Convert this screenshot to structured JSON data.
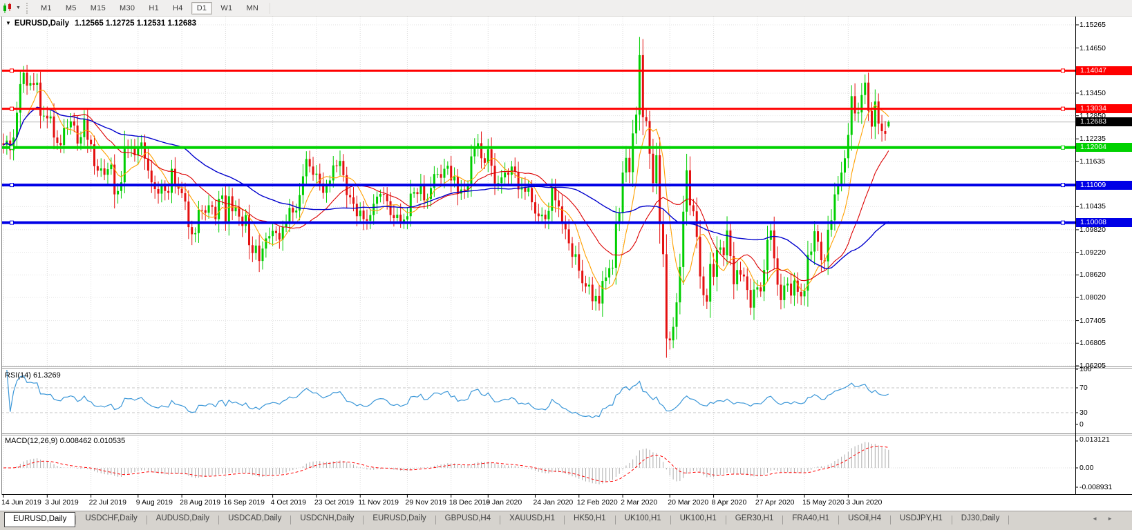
{
  "toolbar": {
    "chart_type_icon": "candlestick-chart-icon",
    "timeframes": [
      {
        "label": "M1",
        "active": false
      },
      {
        "label": "M5",
        "active": false
      },
      {
        "label": "M15",
        "active": false
      },
      {
        "label": "M30",
        "active": false
      },
      {
        "label": "H1",
        "active": false
      },
      {
        "label": "H4",
        "active": false
      },
      {
        "label": "D1",
        "active": true
      },
      {
        "label": "W1",
        "active": false
      },
      {
        "label": "MN",
        "active": false
      }
    ]
  },
  "chart_title": {
    "symbol_period": "EURUSD,Daily",
    "ohlc_line": "1.12565 1.12725 1.12531 1.12683"
  },
  "chart_data": {
    "type": "candlestick",
    "symbol": "EURUSD",
    "period": "Daily",
    "ylim": [
      1.06187,
      1.15485
    ],
    "candle_colors": {
      "up": "#00CE00",
      "down": "#E41010"
    },
    "first_open": 1.1212,
    "closes": [
      1.1207,
      1.1219,
      1.1193,
      1.1227,
      1.1293,
      1.1369,
      1.1399,
      1.1365,
      1.1372,
      1.1367,
      1.1373,
      1.1285,
      1.1285,
      1.1278,
      1.1283,
      1.1227,
      1.1213,
      1.1207,
      1.1253,
      1.1254,
      1.127,
      1.1259,
      1.1211,
      1.1228,
      1.1276,
      1.1221,
      1.1209,
      1.1151,
      1.1139,
      1.1145,
      1.1128,
      1.1143,
      1.1155,
      1.1076,
      1.1085,
      1.1108,
      1.1203,
      1.1197,
      1.12,
      1.118,
      1.12,
      1.1214,
      1.1171,
      1.1139,
      1.1108,
      1.109,
      1.1078,
      1.1099,
      1.1085,
      1.108,
      1.1144,
      1.1101,
      1.1091,
      1.1079,
      1.1057,
      1.0989,
      1.097,
      1.0973,
      1.1035,
      1.1034,
      1.1027,
      1.1047,
      1.1043,
      1.101,
      1.1064,
      1.1073,
      1.1003,
      1.1071,
      1.1031,
      1.1042,
      1.1017,
      1.0992,
      1.1021,
      1.0941,
      1.092,
      1.094,
      1.0899,
      1.0932,
      1.0959,
      1.0965,
      1.0979,
      1.0973,
      1.0956,
      1.0989,
      1.1004,
      1.104,
      1.1028,
      1.1033,
      1.1074,
      1.1124,
      1.117,
      1.115,
      1.1128,
      1.1131,
      1.1105,
      1.108,
      1.1099,
      1.1113,
      1.1153,
      1.1151,
      1.1165,
      1.1127,
      1.1074,
      1.1068,
      1.1051,
      1.1018,
      1.1033,
      1.101,
      1.1006,
      1.1021,
      1.1051,
      1.107,
      1.1077,
      1.1075,
      1.1058,
      1.1021,
      1.1013,
      1.1022,
      1.1001,
      1.1009,
      1.1018,
      1.1078,
      1.1082,
      1.1077,
      1.1104,
      1.106,
      1.1064,
      1.1093,
      1.113,
      1.113,
      1.112,
      1.1144,
      1.1152,
      1.1113,
      1.1123,
      1.1078,
      1.1089,
      1.1086,
      1.1098,
      1.1177,
      1.1199,
      1.1212,
      1.1172,
      1.116,
      1.1196,
      1.1152,
      1.1105,
      1.1106,
      1.1121,
      1.1134,
      1.1128,
      1.115,
      1.1136,
      1.1089,
      1.1095,
      1.1083,
      1.1093,
      1.1055,
      1.1025,
      1.1018,
      1.1022,
      1.101,
      1.1032,
      1.1094,
      1.106,
      1.1044,
      1.0999,
      1.0983,
      1.0946,
      1.091,
      1.0917,
      1.0873,
      1.084,
      1.0831,
      1.0836,
      1.0792,
      1.0806,
      1.0786,
      1.0846,
      1.0855,
      1.088,
      1.0881,
      1.1,
      1.1026,
      1.1134,
      1.1173,
      1.1135,
      1.1238,
      1.1288,
      1.1446,
      1.1281,
      1.1271,
      1.1184,
      1.1106,
      1.118,
      1.0997,
      1.0917,
      1.0693,
      1.0688,
      1.0724,
      1.0789,
      1.0883,
      1.103,
      1.114,
      1.1047,
      1.1031,
      1.0963,
      1.0858,
      1.0808,
      1.0791,
      1.0891,
      1.0857,
      1.0929,
      1.0935,
      1.0914,
      1.098,
      1.0912,
      1.0837,
      1.0875,
      1.0863,
      1.0858,
      1.0822,
      1.0775,
      1.0823,
      1.0829,
      1.0818,
      1.0875,
      1.0955,
      1.098,
      1.0906,
      1.0836,
      1.0795,
      1.0834,
      1.0839,
      1.0807,
      1.0847,
      1.0817,
      1.0805,
      1.082,
      1.0915,
      1.0924,
      1.0978,
      1.095,
      1.0901,
      1.0898,
      1.0982,
      1.1007,
      1.1076,
      1.1101,
      1.1134,
      1.1172,
      1.1234,
      1.1337,
      1.1291,
      1.1294,
      1.134,
      1.1373,
      1.1298,
      1.1256,
      1.1323,
      1.1264,
      1.1244,
      1.1237,
      1.12683
    ],
    "last_bar": {
      "o": 1.12565,
      "h": 1.12725,
      "l": 1.12531,
      "c": 1.12683
    },
    "moving_averages": [
      {
        "name": "fast-ma",
        "period": 8,
        "color": "#FFA000"
      },
      {
        "name": "medium-ma",
        "period": 21,
        "color": "#DC0000"
      },
      {
        "name": "slow-ma",
        "period": 50,
        "color": "#0000CD"
      }
    ],
    "price_ticks": [
      {
        "label": "1.15265",
        "value": 1.15265
      },
      {
        "label": "1.14650",
        "value": 1.1465
      },
      {
        "label": "1.13450",
        "value": 1.1345
      },
      {
        "label": "1.12850",
        "value": 1.1285
      },
      {
        "label": "1.12235",
        "value": 1.12235
      },
      {
        "label": "1.11635",
        "value": 1.11635
      },
      {
        "label": "1.10435",
        "value": 1.10435
      },
      {
        "label": "1.09820",
        "value": 1.0982
      },
      {
        "label": "1.09220",
        "value": 1.0922
      },
      {
        "label": "1.08620",
        "value": 1.0862
      },
      {
        "label": "1.08020",
        "value": 1.0802
      },
      {
        "label": "1.07405",
        "value": 1.07405
      },
      {
        "label": "1.06805",
        "value": 1.06805
      },
      {
        "label": "1.06205",
        "value": 1.06205
      }
    ],
    "grid_only_prices": [
      1.14035,
      1.1102
    ],
    "level_lines": [
      {
        "price": 1.14047,
        "label": "1.14047",
        "color": "#FF0000",
        "width": 3
      },
      {
        "price": 1.13034,
        "label": "1.13034",
        "color": "#FF0000",
        "width": 3
      },
      {
        "price": 1.12004,
        "label": "1.12004",
        "color": "#00D200",
        "width": 4
      },
      {
        "price": 1.11009,
        "label": "1.11009",
        "color": "#0000E6",
        "width": 4
      },
      {
        "price": 1.10008,
        "label": "1.10008",
        "color": "#0000E6",
        "width": 4
      }
    ],
    "current_price": {
      "value": 1.12683,
      "label": "1.12683",
      "line_color": "#b9b9b9",
      "label_bg": "#000000"
    },
    "date_ticks": [
      {
        "label": "14 Jun 2019",
        "index": 0
      },
      {
        "label": "3 Jul 2019",
        "index": 13
      },
      {
        "label": "22 Jul 2019",
        "index": 26
      },
      {
        "label": "9 Aug 2019",
        "index": 40
      },
      {
        "label": "28 Aug 2019",
        "index": 53
      },
      {
        "label": "16 Sep 2019",
        "index": 66
      },
      {
        "label": "4 Oct 2019",
        "index": 80
      },
      {
        "label": "23 Oct 2019",
        "index": 93
      },
      {
        "label": "11 Nov 2019",
        "index": 106
      },
      {
        "label": "29 Nov 2019",
        "index": 120
      },
      {
        "label": "18 Dec 2019",
        "index": 133
      },
      {
        "label": "6 Jan 2020",
        "index": 144
      },
      {
        "label": "24 Jan 2020",
        "index": 158
      },
      {
        "label": "12 Feb 2020",
        "index": 171
      },
      {
        "label": "2 Mar 2020",
        "index": 184
      },
      {
        "label": "20 Mar 2020",
        "index": 198
      },
      {
        "label": "8 Apr 2020",
        "index": 211
      },
      {
        "label": "27 Apr 2020",
        "index": 224
      },
      {
        "label": "15 May 2020",
        "index": 238
      },
      {
        "label": "3 Jun 2020",
        "index": 251
      }
    ],
    "rsi": {
      "label": "RSI(14) 61.3269",
      "period": 14,
      "last_value": 61.3269,
      "levels": [
        70,
        30
      ],
      "axis_labels": [
        "100",
        "70",
        "30",
        "0"
      ],
      "line_color": "#3b97d8"
    },
    "macd": {
      "label": "MACD(12,26,9) 0.008462 0.010535",
      "fast": 12,
      "slow": 26,
      "signal": 9,
      "last_macd": 0.008462,
      "last_signal": 0.010535,
      "axis_labels": [
        "0.013121",
        "0.00",
        "-0.008931"
      ],
      "hist_color": "#ababab",
      "signal_color": "#FF0000"
    }
  },
  "tabbar": {
    "tabs": [
      {
        "label": "EURUSD,Daily",
        "active": true
      },
      {
        "label": "USDCHF,Daily",
        "active": false
      },
      {
        "label": "AUDUSD,Daily",
        "active": false
      },
      {
        "label": "USDCAD,Daily",
        "active": false
      },
      {
        "label": "USDCNH,Daily",
        "active": false
      },
      {
        "label": "EURUSD,Daily",
        "active": false
      },
      {
        "label": "GBPUSD,H4",
        "active": false
      },
      {
        "label": "XAUUSD,H1",
        "active": false
      },
      {
        "label": "HK50,H1",
        "active": false
      },
      {
        "label": "UK100,H1",
        "active": false
      },
      {
        "label": "UK100,H1",
        "active": false
      },
      {
        "label": "GER30,H1",
        "active": false
      },
      {
        "label": "FRA40,H1",
        "active": false
      },
      {
        "label": "USOil,H4",
        "active": false
      },
      {
        "label": "USDJPY,H1",
        "active": false
      },
      {
        "label": "DJ30,Daily",
        "active": false
      }
    ],
    "scroll_left": "◄",
    "scroll_right": "►"
  }
}
